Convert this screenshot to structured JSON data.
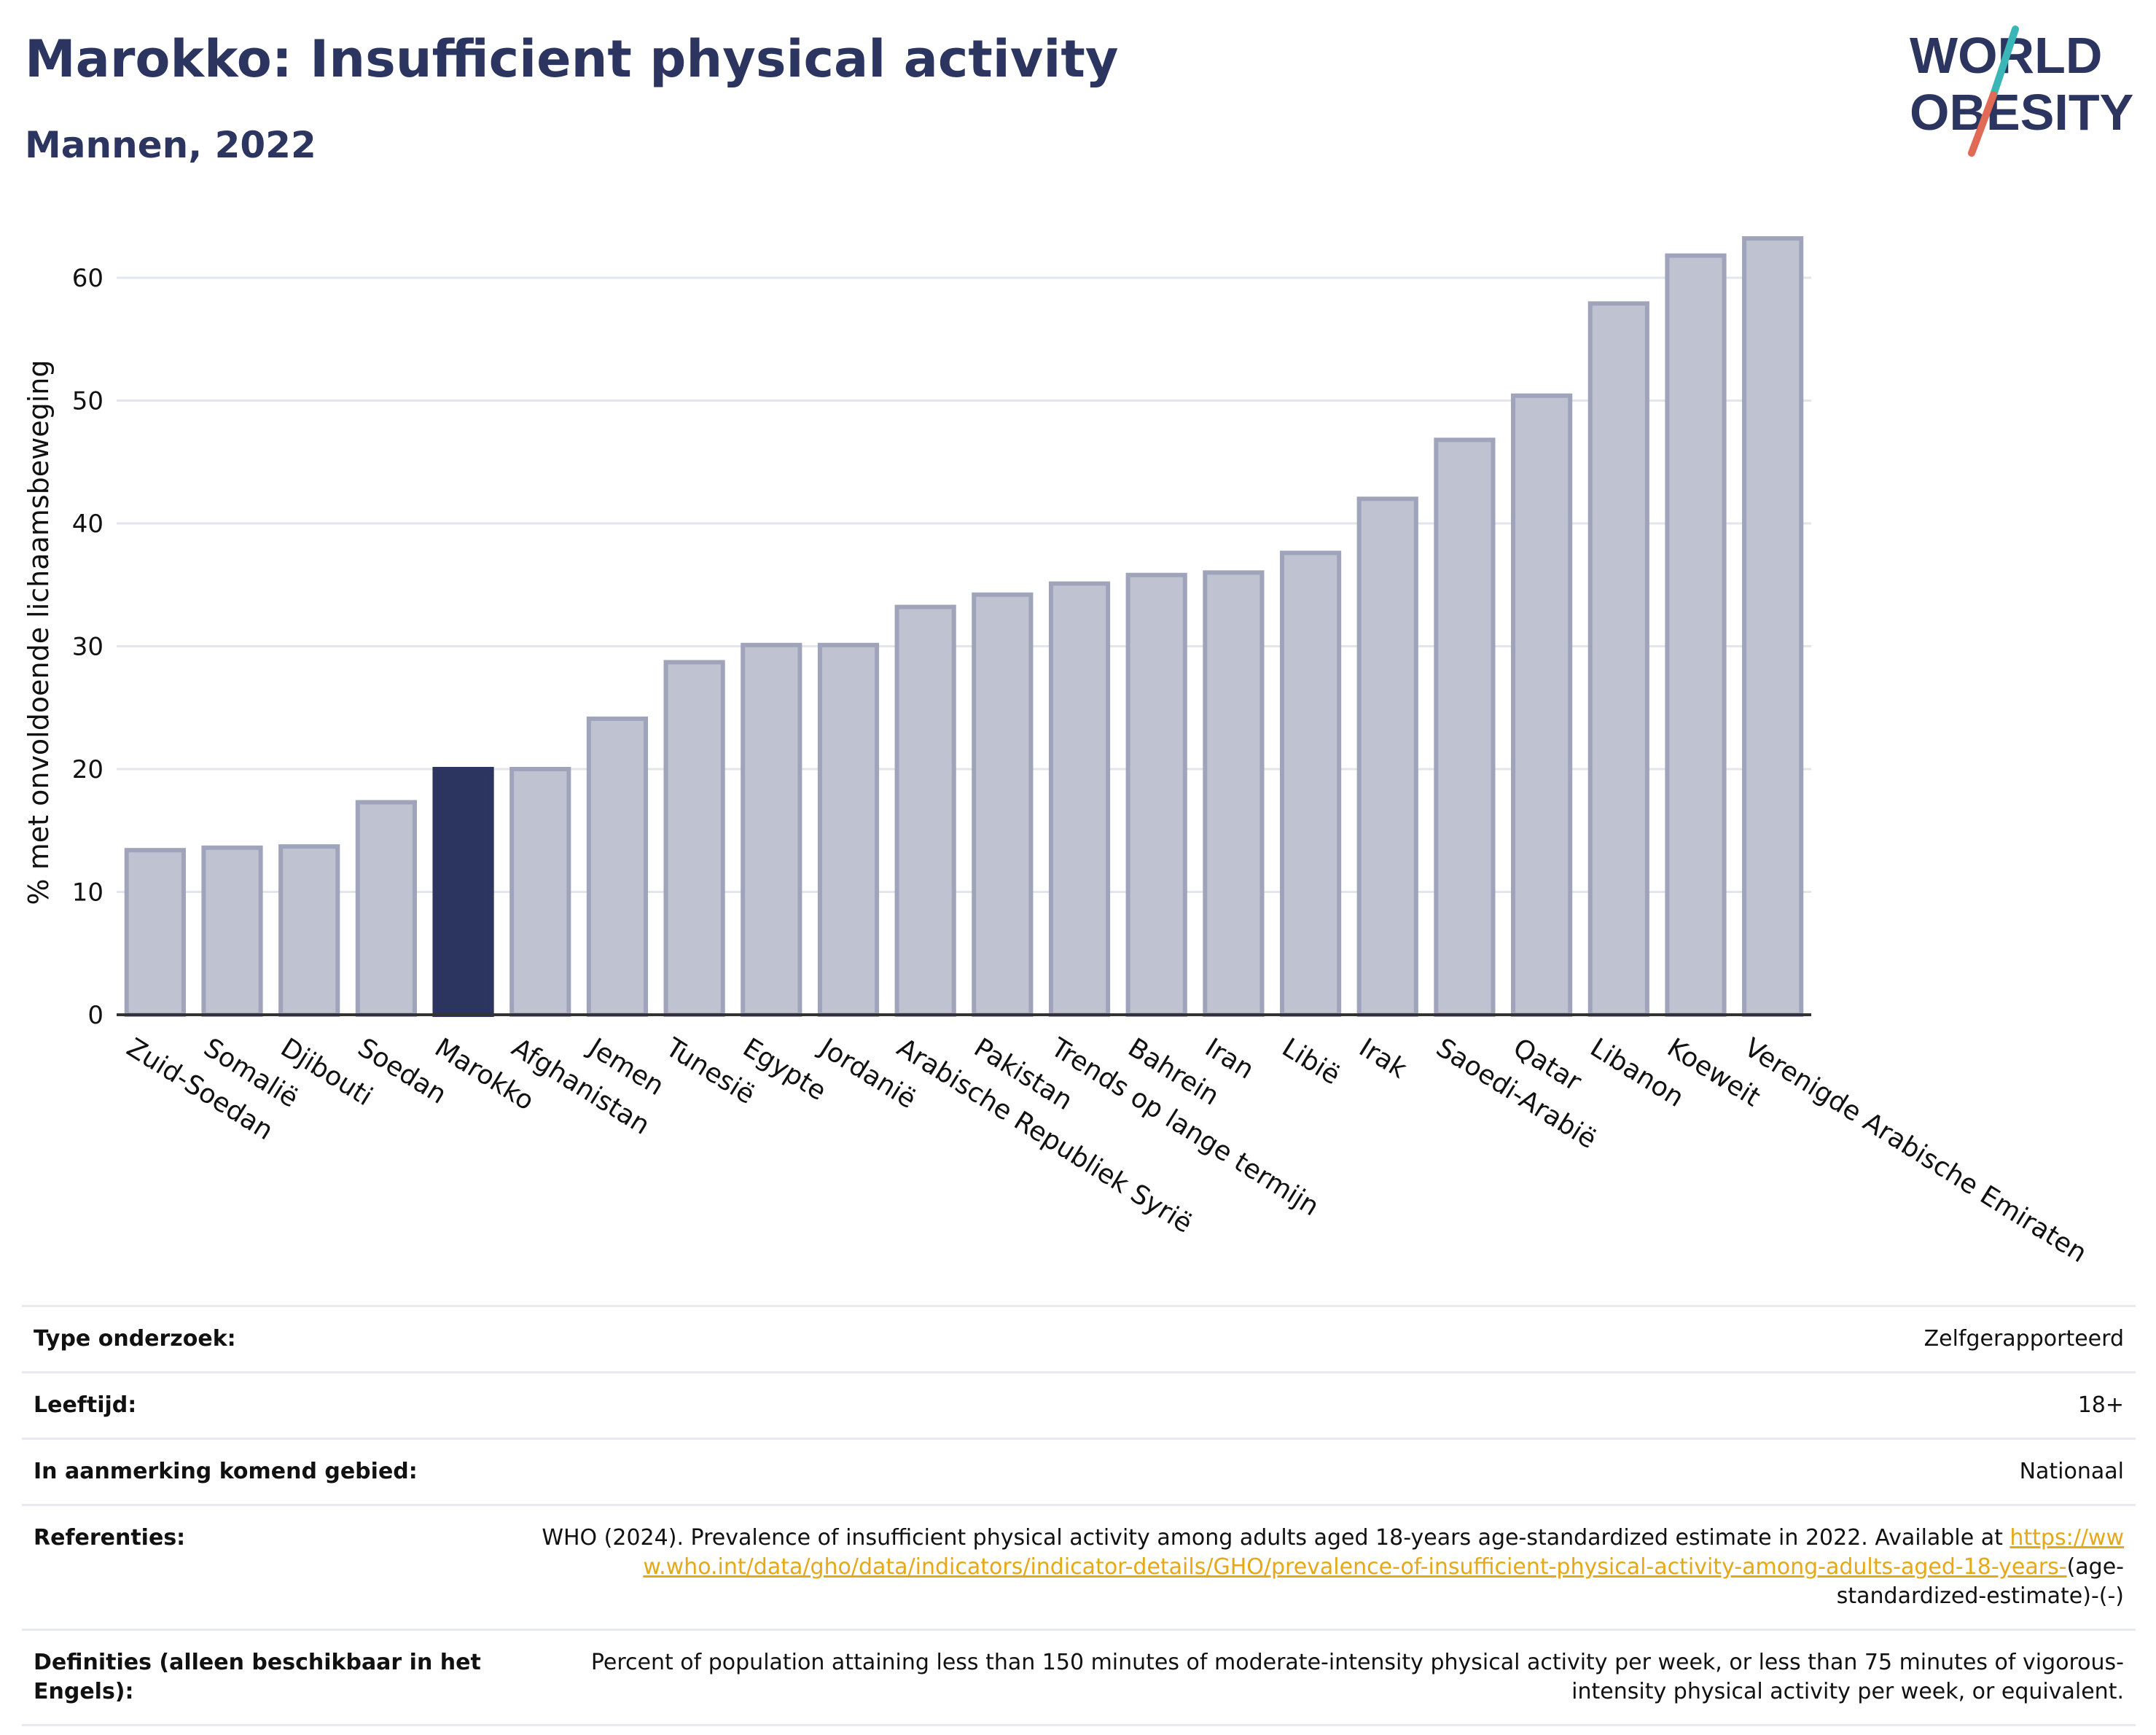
{
  "header": {
    "title": "Marokko: Insufficient physical activity",
    "subtitle": "Mannen, 2022"
  },
  "logo": {
    "line1": "WORLD",
    "line2": "OBESITY"
  },
  "colors": {
    "highlight": "#2b3560",
    "bar": "#bfc2d0",
    "bar_stroke": "#9fa4bb",
    "title": "#2b3560",
    "link": "#e6a817",
    "logo_slash_top": "#3ab6b6",
    "logo_slash_bottom": "#e06a55"
  },
  "chart_data": {
    "type": "bar",
    "categories": [
      "Zuid-Soedan",
      "Somalië",
      "Djibouti",
      "Soedan",
      "Marokko",
      "Afghanistan",
      "Jemen",
      "Tunesië",
      "Egypte",
      "Jordanië",
      "Arabische Republiek Syrië",
      "Pakistan",
      "Trends op lange termijn",
      "Bahrein",
      "Iran",
      "Libië",
      "Irak",
      "Saoedi-Arabië",
      "Qatar",
      "Libanon",
      "Koeweit",
      "Verenigde Arabische Emiraten"
    ],
    "values": [
      13.4,
      13.6,
      13.7,
      17.3,
      20.0,
      20.0,
      24.1,
      28.7,
      30.1,
      30.1,
      33.2,
      34.2,
      35.1,
      35.8,
      36.0,
      37.6,
      42.0,
      46.8,
      50.4,
      57.9,
      61.8,
      63.2
    ],
    "highlight": "Marokko",
    "ylabel": "% met onvoldoende lichaamsbeweging",
    "xlabel": "",
    "ylim": [
      0,
      67
    ],
    "yticks": [
      0,
      10,
      20,
      30,
      40,
      50,
      60
    ],
    "grid": true,
    "legend": "none"
  },
  "meta": {
    "survey_type": {
      "label": "Type onderzoek:",
      "value": "Zelfgerapporteerd"
    },
    "age": {
      "label": "Leeftijd:",
      "value": "18+"
    },
    "area": {
      "label": "In aanmerking komend gebied:",
      "value": "Nationaal"
    },
    "references": {
      "label": "Referenties:",
      "text": "WHO (2024). Prevalence of insufficient physical activity among adults aged 18-years age-standardized estimate in 2022. Available at",
      "link": "https://www.who.int/data/gho/data/indicators/indicator-details/GHO/prevalence-of-insufficient-physical-activity-among-adults-aged-18-years-",
      "suffix": "(age-standardized-estimate)-(-)"
    },
    "definitions": {
      "label": "Definities (alleen beschikbaar in het Engels):",
      "value": "Percent of population attaining less than 150 minutes of moderate-intensity physical activity per week, or less than 75 minutes of vigorous-intensity physical activity per week, or equivalent."
    }
  }
}
